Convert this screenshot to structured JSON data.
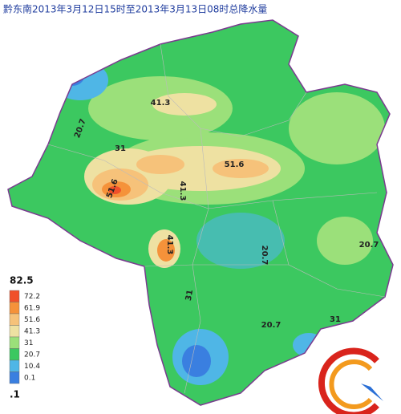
{
  "header": {
    "title": "黔东南2013年3月12日15时至2013年3月13日08时总降水量"
  },
  "legend": {
    "max": "82.5",
    "min": ".1",
    "items": [
      {
        "label": "72.2",
        "color": "#f0502a"
      },
      {
        "label": "61.9",
        "color": "#f5923a"
      },
      {
        "label": "51.6",
        "color": "#f6c27a"
      },
      {
        "label": "41.3",
        "color": "#eee1a2"
      },
      {
        "label": "31",
        "color": "#9be07a"
      },
      {
        "label": "20.7",
        "color": "#3cc860"
      },
      {
        "label": "10.4",
        "color": "#4fb6e6"
      },
      {
        "label": "0.1",
        "color": "#3a7fe0"
      }
    ]
  },
  "contour_labels": [
    "20.7",
    "31",
    "41.3",
    "51.6",
    "51.6",
    "41.3",
    "20.7",
    "20.7",
    "31",
    "20.7",
    "31",
    "41.3"
  ]
}
